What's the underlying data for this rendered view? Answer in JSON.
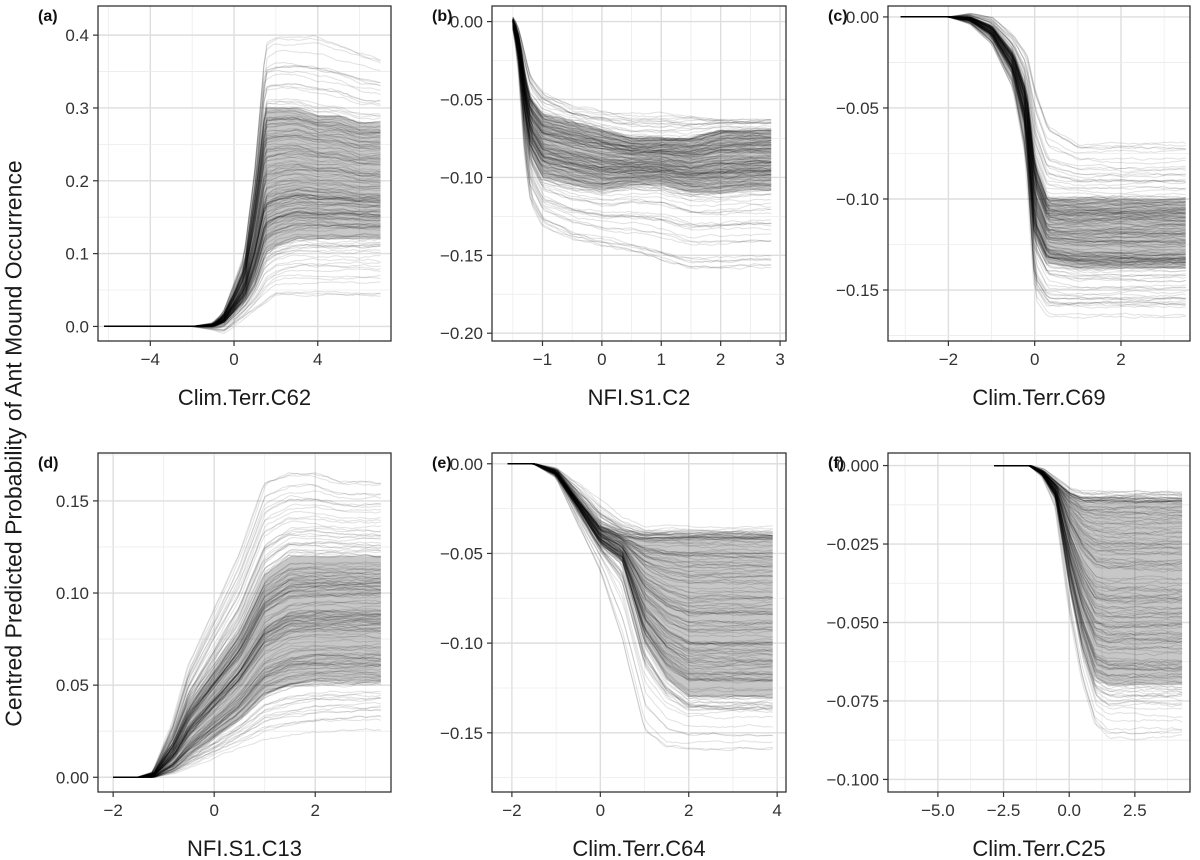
{
  "figure": {
    "ylabel": "Centred Predicted Probability of Ant Mound Occurrence"
  },
  "chart_data": [
    {
      "type": "line",
      "panel_label": "(a)",
      "xlabel": "Clim.Terr.C62",
      "xlim": [
        -6.5,
        7.5
      ],
      "ylim": [
        -0.02,
        0.44
      ],
      "xticks": [
        -4,
        0,
        4
      ],
      "xtick_labels": [
        "−4",
        "0",
        "4"
      ],
      "yticks": [
        0.0,
        0.1,
        0.2,
        0.3,
        0.4
      ],
      "ytick_labels": [
        "0.0",
        "0.1",
        "0.2",
        "0.3",
        "0.4"
      ],
      "grid": true,
      "x_start": -6.2,
      "x_end": 7.0,
      "series": [
        {
          "role": "upper",
          "x": [
            -6.2,
            -2,
            -1,
            -0.5,
            0,
            0.5,
            1,
            1.5,
            2,
            3,
            4,
            5,
            6,
            7
          ],
          "y": [
            0.0,
            0.0,
            0.005,
            0.02,
            0.06,
            0.1,
            0.22,
            0.39,
            0.4,
            0.4,
            0.4,
            0.39,
            0.38,
            0.37
          ]
        },
        {
          "role": "core_top",
          "x": [
            -6.2,
            -2,
            -1,
            -0.5,
            0,
            0.5,
            1,
            1.5,
            2,
            3,
            4,
            5,
            6,
            7
          ],
          "y": [
            0.0,
            0.0,
            0.003,
            0.015,
            0.045,
            0.08,
            0.18,
            0.3,
            0.3,
            0.3,
            0.29,
            0.29,
            0.28,
            0.28
          ]
        },
        {
          "role": "core_bottom",
          "x": [
            -6.2,
            -2,
            -1,
            -0.5,
            0,
            0.5,
            1,
            1.5,
            2,
            3,
            4,
            5,
            6,
            7
          ],
          "y": [
            0.0,
            0.0,
            0.0,
            0.005,
            0.02,
            0.035,
            0.06,
            0.1,
            0.11,
            0.12,
            0.12,
            0.12,
            0.12,
            0.12
          ]
        },
        {
          "role": "lower",
          "x": [
            -6.2,
            -2,
            -1,
            -0.5,
            0,
            0.5,
            1,
            1.5,
            2,
            3,
            4,
            5,
            6,
            7
          ],
          "y": [
            0.0,
            0.0,
            -0.005,
            -0.01,
            0.0,
            0.01,
            0.02,
            0.03,
            0.04,
            0.04,
            0.04,
            0.04,
            0.04,
            0.04
          ]
        }
      ]
    },
    {
      "type": "line",
      "panel_label": "(b)",
      "xlabel": "NFI.S1.C2",
      "xlim": [
        -1.85,
        3.1
      ],
      "ylim": [
        -0.205,
        0.01
      ],
      "xticks": [
        -1,
        0,
        1,
        2,
        3
      ],
      "xtick_labels": [
        "−1",
        "0",
        "1",
        "2",
        "3"
      ],
      "yticks": [
        0.0,
        -0.05,
        -0.1,
        -0.15,
        -0.2
      ],
      "ytick_labels": [
        "0.00",
        "−0.05",
        "−0.10",
        "−0.15",
        "−0.20"
      ],
      "grid": true,
      "x_start": -1.5,
      "x_end": 2.85,
      "series": [
        {
          "role": "upper",
          "x": [
            -1.5,
            -1.4,
            -1.3,
            -1.2,
            -1.0,
            -0.5,
            0,
            0.5,
            1,
            1.5,
            2,
            2.5,
            2.85
          ],
          "y": [
            0.003,
            -0.005,
            -0.02,
            -0.035,
            -0.045,
            -0.055,
            -0.058,
            -0.06,
            -0.06,
            -0.06,
            -0.062,
            -0.062,
            -0.062
          ]
        },
        {
          "role": "core_top",
          "x": [
            -1.5,
            -1.4,
            -1.3,
            -1.2,
            -1.0,
            -0.5,
            0,
            0.5,
            1,
            1.5,
            2,
            2.5,
            2.85
          ],
          "y": [
            0.002,
            -0.01,
            -0.035,
            -0.05,
            -0.06,
            -0.065,
            -0.07,
            -0.075,
            -0.075,
            -0.075,
            -0.07,
            -0.07,
            -0.07
          ]
        },
        {
          "role": "core_bottom",
          "x": [
            -1.5,
            -1.4,
            -1.3,
            -1.2,
            -1.0,
            -0.5,
            0,
            0.5,
            1,
            1.5,
            2,
            2.5,
            2.85
          ],
          "y": [
            0.0,
            -0.02,
            -0.06,
            -0.085,
            -0.1,
            -0.105,
            -0.108,
            -0.105,
            -0.105,
            -0.11,
            -0.11,
            -0.108,
            -0.108
          ]
        },
        {
          "role": "lower",
          "x": [
            -1.5,
            -1.4,
            -1.3,
            -1.2,
            -1.0,
            -0.5,
            0,
            0.5,
            1,
            1.5,
            2,
            2.5,
            2.85
          ],
          "y": [
            0.0,
            -0.03,
            -0.09,
            -0.12,
            -0.135,
            -0.145,
            -0.15,
            -0.155,
            -0.16,
            -0.165,
            -0.165,
            -0.165,
            -0.165
          ]
        }
      ]
    },
    {
      "type": "line",
      "panel_label": "(c)",
      "xlabel": "Clim.Terr.C69",
      "xlim": [
        -3.4,
        3.6
      ],
      "ylim": [
        -0.178,
        0.006
      ],
      "xticks": [
        -2,
        0,
        2
      ],
      "xtick_labels": [
        "−2",
        "0",
        "2"
      ],
      "yticks": [
        0.0,
        -0.05,
        -0.1,
        -0.15
      ],
      "ytick_labels": [
        "0.00",
        "−0.05",
        "−0.10",
        "−0.15"
      ],
      "grid": true,
      "x_start": -3.1,
      "x_end": 3.5,
      "series": [
        {
          "role": "upper",
          "x": [
            -3.1,
            -2.0,
            -1.5,
            -1.0,
            -0.5,
            -0.2,
            0.0,
            0.3,
            1.0,
            2.0,
            3.5
          ],
          "y": [
            0.0,
            0.0,
            0.002,
            0.0,
            -0.01,
            -0.02,
            -0.04,
            -0.06,
            -0.07,
            -0.07,
            -0.07
          ]
        },
        {
          "role": "core_top",
          "x": [
            -3.1,
            -2.0,
            -1.5,
            -1.0,
            -0.5,
            -0.2,
            0.0,
            0.3,
            1.0,
            2.0,
            3.5
          ],
          "y": [
            0.0,
            0.0,
            0.0,
            -0.005,
            -0.02,
            -0.04,
            -0.08,
            -0.1,
            -0.1,
            -0.1,
            -0.1
          ]
        },
        {
          "role": "core_bottom",
          "x": [
            -3.1,
            -2.0,
            -1.5,
            -1.0,
            -0.5,
            -0.2,
            0.0,
            0.3,
            1.0,
            2.0,
            3.5
          ],
          "y": [
            0.0,
            0.0,
            -0.002,
            -0.01,
            -0.03,
            -0.06,
            -0.12,
            -0.135,
            -0.138,
            -0.138,
            -0.138
          ]
        },
        {
          "role": "lower",
          "x": [
            -3.1,
            -2.0,
            -1.5,
            -1.0,
            -0.5,
            -0.2,
            0.0,
            0.3,
            1.0,
            2.0,
            3.5
          ],
          "y": [
            0.0,
            0.0,
            -0.004,
            -0.015,
            -0.04,
            -0.08,
            -0.155,
            -0.165,
            -0.165,
            -0.165,
            -0.165
          ]
        }
      ]
    },
    {
      "type": "line",
      "panel_label": "(d)",
      "xlabel": "NFI.S1.C13",
      "xlim": [
        -2.3,
        3.5
      ],
      "ylim": [
        -0.008,
        0.176
      ],
      "xticks": [
        -2,
        0,
        2
      ],
      "xtick_labels": [
        "−2",
        "0",
        "2"
      ],
      "yticks": [
        0.0,
        0.05,
        0.1,
        0.15
      ],
      "ytick_labels": [
        "0.00",
        "0.05",
        "0.10",
        "0.15"
      ],
      "grid": true,
      "x_start": -2.0,
      "x_end": 3.3,
      "series": [
        {
          "role": "upper",
          "x": [
            -2.0,
            -1.5,
            -1.2,
            -0.8,
            -0.5,
            0.0,
            0.5,
            1.0,
            1.5,
            2.0,
            2.5,
            3.3
          ],
          "y": [
            0.0,
            0.0,
            0.003,
            0.03,
            0.06,
            0.09,
            0.12,
            0.16,
            0.165,
            0.165,
            0.16,
            0.16
          ]
        },
        {
          "role": "core_top",
          "x": [
            -2.0,
            -1.5,
            -1.2,
            -0.8,
            -0.5,
            0.0,
            0.5,
            1.0,
            1.5,
            2.0,
            2.5,
            3.3
          ],
          "y": [
            0.0,
            0.0,
            0.002,
            0.02,
            0.04,
            0.06,
            0.08,
            0.11,
            0.12,
            0.12,
            0.12,
            0.12
          ]
        },
        {
          "role": "core_bottom",
          "x": [
            -2.0,
            -1.5,
            -1.2,
            -0.8,
            -0.5,
            0.0,
            0.5,
            1.0,
            1.5,
            2.0,
            2.5,
            3.3
          ],
          "y": [
            0.0,
            0.0,
            0.0,
            0.005,
            0.012,
            0.022,
            0.032,
            0.045,
            0.05,
            0.052,
            0.052,
            0.052
          ]
        },
        {
          "role": "lower",
          "x": [
            -2.0,
            -1.5,
            -1.2,
            -0.8,
            -0.5,
            0.0,
            0.5,
            1.0,
            1.5,
            2.0,
            2.5,
            3.3
          ],
          "y": [
            0.0,
            0.0,
            0.0,
            0.002,
            0.005,
            0.01,
            0.015,
            0.02,
            0.022,
            0.024,
            0.025,
            0.025
          ]
        }
      ]
    },
    {
      "type": "line",
      "panel_label": "(e)",
      "xlabel": "Clim.Terr.C64",
      "xlim": [
        -2.45,
        4.2
      ],
      "ylim": [
        -0.183,
        0.006
      ],
      "xticks": [
        -2,
        0,
        2,
        4
      ],
      "xtick_labels": [
        "−2",
        "0",
        "2",
        "4"
      ],
      "yticks": [
        0.0,
        -0.05,
        -0.1,
        -0.15
      ],
      "ytick_labels": [
        "0.00",
        "−0.05",
        "−0.10",
        "−0.15"
      ],
      "grid": true,
      "x_start": -2.1,
      "x_end": 3.9,
      "series": [
        {
          "role": "upper",
          "x": [
            -2.1,
            -1.5,
            -1.0,
            -0.5,
            0.0,
            0.5,
            1.0,
            1.5,
            2.0,
            3.0,
            3.9
          ],
          "y": [
            0.0,
            0.0,
            -0.002,
            -0.01,
            -0.02,
            -0.03,
            -0.035,
            -0.035,
            -0.035,
            -0.035,
            -0.035
          ]
        },
        {
          "role": "core_top",
          "x": [
            -2.1,
            -1.5,
            -1.0,
            -0.5,
            0.0,
            0.5,
            1.0,
            1.5,
            2.0,
            3.0,
            3.9
          ],
          "y": [
            0.0,
            0.0,
            -0.004,
            -0.02,
            -0.035,
            -0.04,
            -0.042,
            -0.042,
            -0.042,
            -0.042,
            -0.042
          ]
        },
        {
          "role": "core_bottom",
          "x": [
            -2.1,
            -1.5,
            -1.0,
            -0.5,
            0.0,
            0.5,
            1.0,
            1.5,
            2.0,
            3.0,
            3.9
          ],
          "y": [
            0.0,
            0.0,
            -0.006,
            -0.025,
            -0.045,
            -0.055,
            -0.1,
            -0.12,
            -0.13,
            -0.13,
            -0.13
          ]
        },
        {
          "role": "lower",
          "x": [
            -2.1,
            -1.5,
            -1.0,
            -0.5,
            0.0,
            0.5,
            1.0,
            1.5,
            2.0,
            3.0,
            3.9
          ],
          "y": [
            0.0,
            0.0,
            -0.008,
            -0.035,
            -0.06,
            -0.1,
            -0.15,
            -0.16,
            -0.16,
            -0.16,
            -0.16
          ]
        }
      ]
    },
    {
      "type": "line",
      "panel_label": "(f)",
      "xlabel": "Clim.Terr.C25",
      "xlim": [
        -6.9,
        4.6
      ],
      "ylim": [
        -0.104,
        0.004
      ],
      "xticks": [
        -5.0,
        -2.5,
        0.0,
        2.5
      ],
      "xtick_labels": [
        "−5.0",
        "−2.5",
        "0.0",
        "2.5"
      ],
      "yticks": [
        0.0,
        -0.025,
        -0.05,
        -0.075,
        -0.1
      ],
      "ytick_labels": [
        "0.000",
        "−0.025",
        "−0.050",
        "−0.075",
        "−0.100"
      ],
      "grid": true,
      "x_start": -2.85,
      "x_end": 4.3,
      "series": [
        {
          "role": "upper",
          "x": [
            -2.85,
            -1.5,
            -1.0,
            -0.5,
            0.0,
            0.5,
            1.0,
            1.5,
            2.0,
            3.0,
            4.3
          ],
          "y": [
            0.0,
            0.0,
            -0.001,
            -0.004,
            -0.007,
            -0.008,
            -0.008,
            -0.008,
            -0.008,
            -0.008,
            -0.008
          ]
        },
        {
          "role": "core_top",
          "x": [
            -2.85,
            -1.5,
            -1.0,
            -0.5,
            0.0,
            0.5,
            1.0,
            1.5,
            2.0,
            3.0,
            4.3
          ],
          "y": [
            0.0,
            0.0,
            -0.002,
            -0.006,
            -0.01,
            -0.012,
            -0.012,
            -0.012,
            -0.012,
            -0.012,
            -0.012
          ]
        },
        {
          "role": "core_bottom",
          "x": [
            -2.85,
            -1.5,
            -1.0,
            -0.5,
            0.0,
            0.5,
            1.0,
            1.5,
            2.0,
            3.0,
            4.3
          ],
          "y": [
            0.0,
            0.0,
            -0.003,
            -0.01,
            -0.035,
            -0.055,
            -0.068,
            -0.07,
            -0.07,
            -0.07,
            -0.07
          ]
        },
        {
          "role": "lower",
          "x": [
            -2.85,
            -1.5,
            -1.0,
            -0.5,
            0.0,
            0.5,
            1.0,
            1.5,
            2.0,
            3.0,
            4.3
          ],
          "y": [
            0.0,
            0.0,
            -0.004,
            -0.015,
            -0.05,
            -0.075,
            -0.09,
            -0.094,
            -0.094,
            -0.094,
            -0.094
          ]
        }
      ]
    }
  ]
}
